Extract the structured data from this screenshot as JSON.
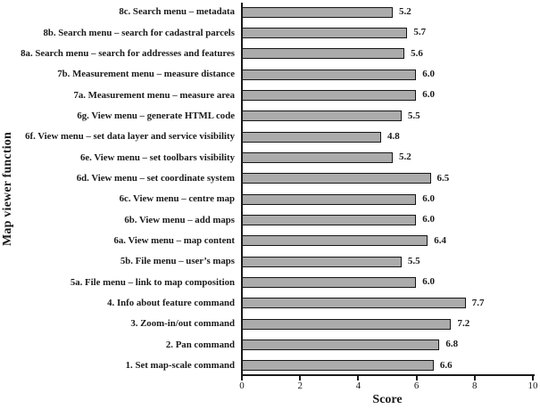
{
  "chart_data": {
    "type": "bar",
    "orientation": "horizontal",
    "title": "",
    "xlabel": "Score",
    "ylabel": "Map viewer function",
    "xlim": [
      0,
      10
    ],
    "xticks": [
      "0",
      "2",
      "4",
      "6",
      "8",
      "10"
    ],
    "grid": false,
    "legend": false,
    "bar_color": "#ababab",
    "bar_border_color": "#161616",
    "categories": [
      "8c. Search menu – metadata",
      "8b. Search menu – search for cadastral parcels",
      "8a. Search menu – search for addresses and features",
      "7b. Measurement menu – measure distance",
      "7a. Measurement menu – measure area",
      "6g. View menu – generate HTML code",
      "6f. View menu – set data layer and service visibility",
      "6e. View menu – set toolbars visibility",
      "6d. View menu – set coordinate system",
      "6c. View menu – centre map",
      "6b. View menu – add maps",
      "6a. View menu – map content",
      "5b. File menu – user’s maps",
      "5a. File menu – link to map composition",
      "4. Info about feature command",
      "3. Zoom-in/out command",
      "2. Pan command",
      "1. Set map-scale command"
    ],
    "values": [
      5.2,
      5.7,
      5.6,
      6.0,
      6.0,
      5.5,
      4.8,
      5.2,
      6.5,
      6.0,
      6.0,
      6.4,
      5.5,
      6.0,
      7.7,
      7.2,
      6.8,
      6.6
    ],
    "value_labels": [
      "5.2",
      "5.7",
      "5.6",
      "6.0",
      "6.0",
      "5.5",
      "4.8",
      "5.2",
      "6.5",
      "6.0",
      "6.0",
      "6.4",
      "5.5",
      "6.0",
      "7.7",
      "7.2",
      "6.8",
      "6.6"
    ]
  }
}
